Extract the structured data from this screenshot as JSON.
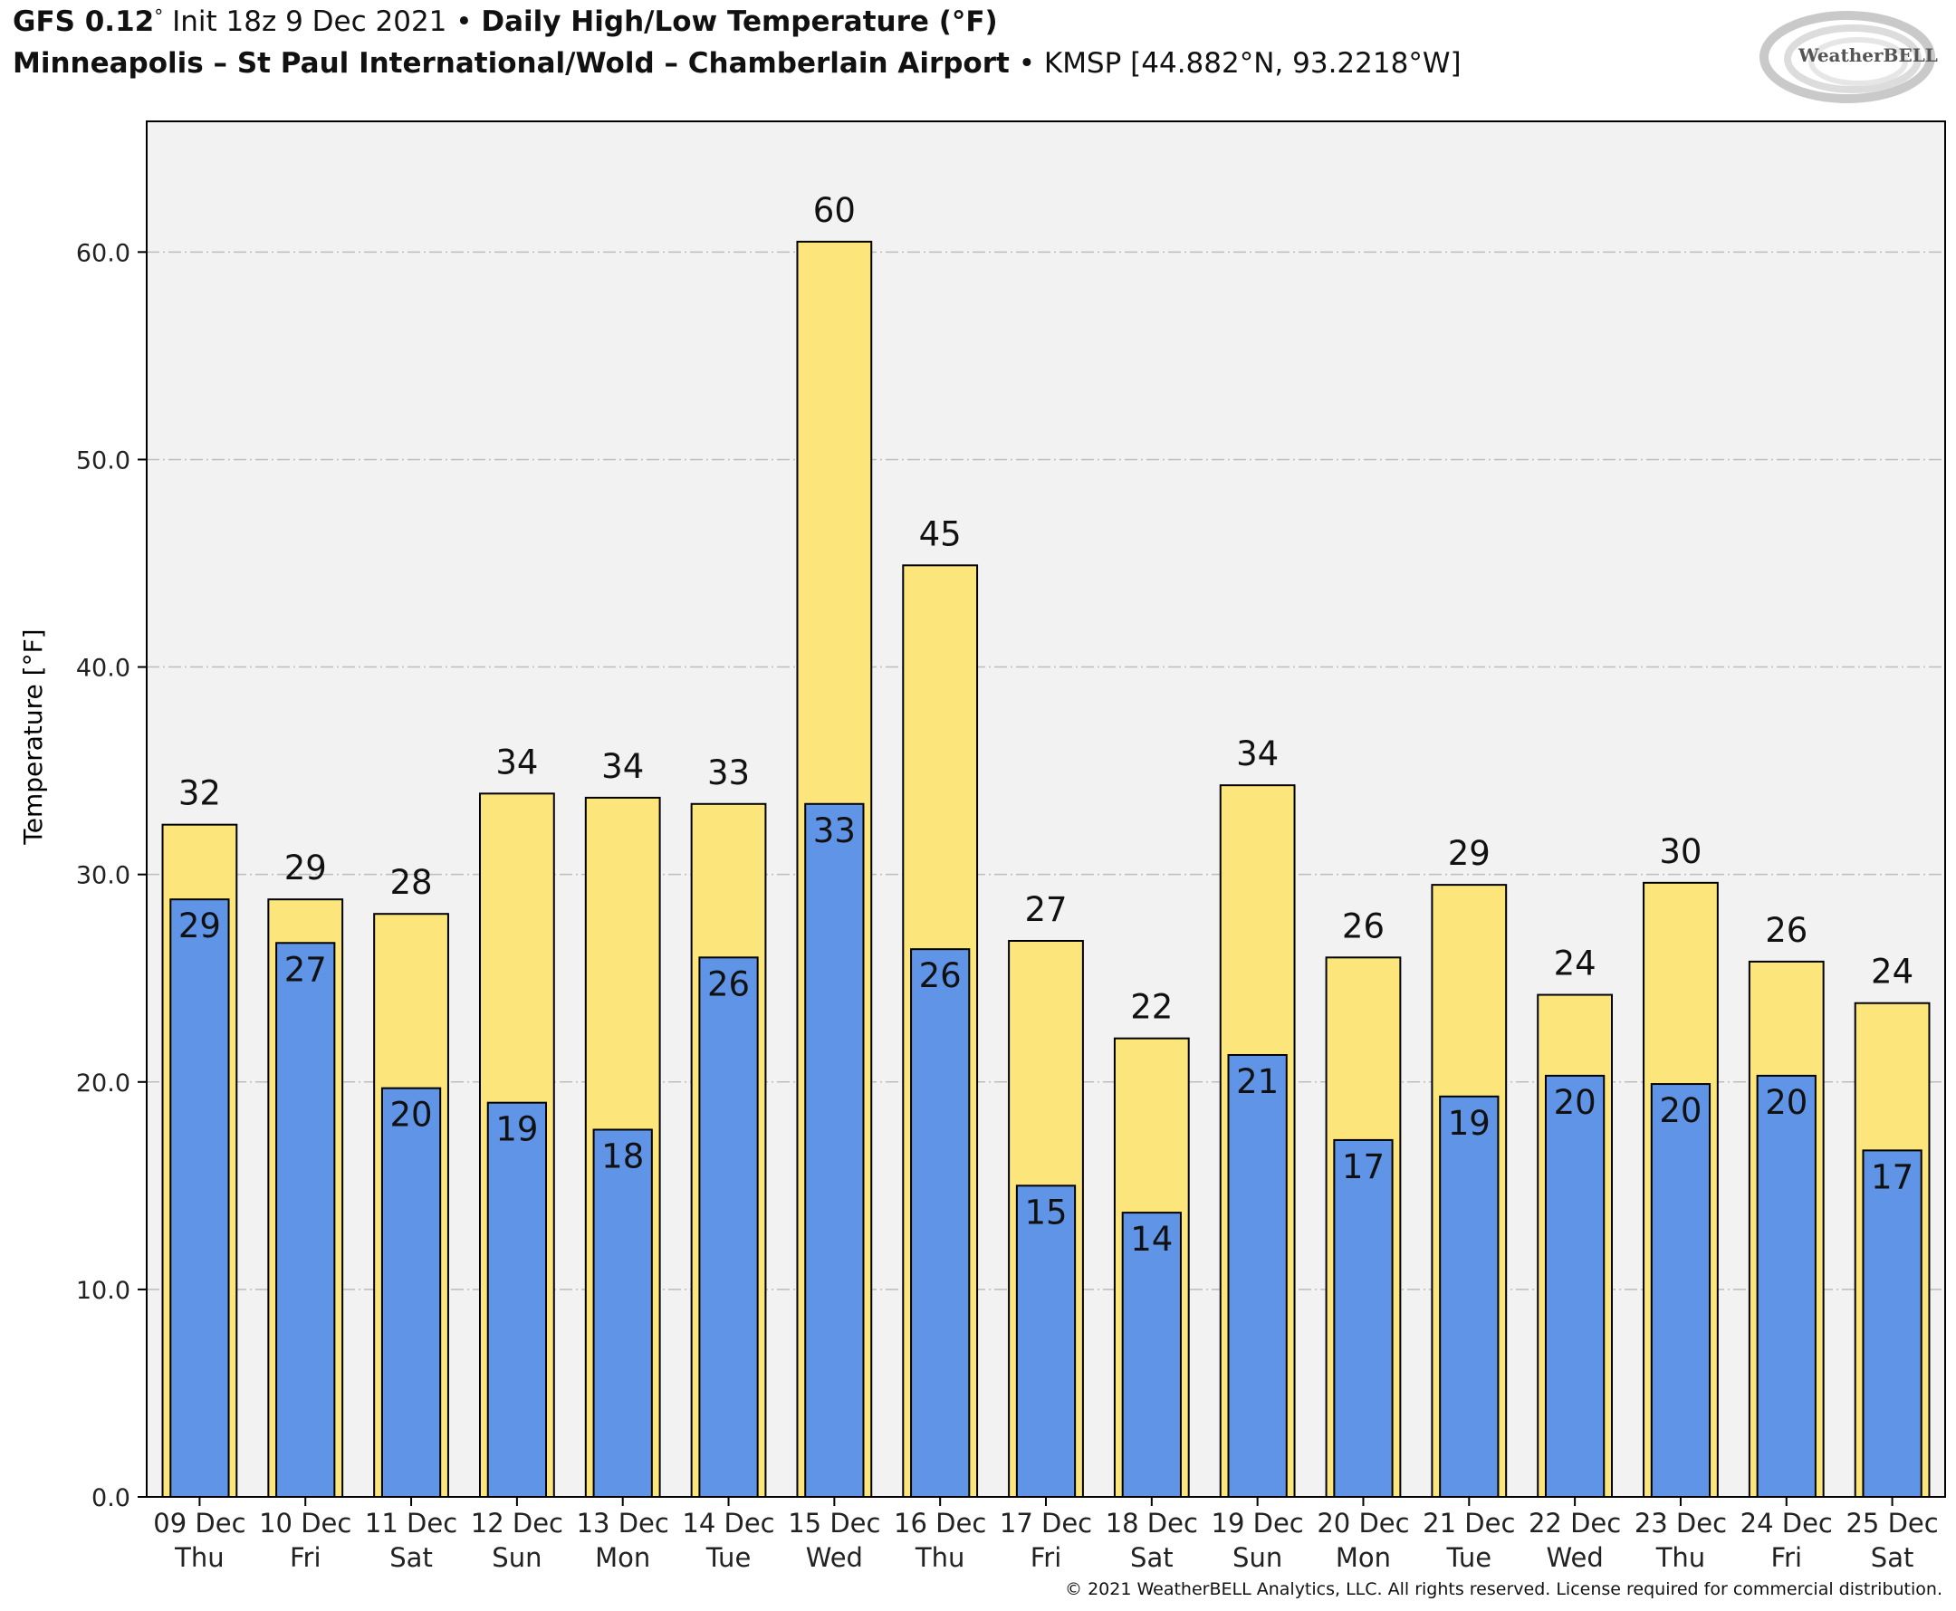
{
  "header": {
    "model": "GFS 0.12",
    "model_unit": "°",
    "init": "Init 18z 9 Dec 2021",
    "bullet": "•",
    "title": "Daily High/Low Temperature (°F)",
    "location": "Minneapolis – St Paul International/Wold – Chamberlain Airport",
    "station": "KMSP [44.882°N, 93.2218°W]"
  },
  "logo": {
    "text": "WeatherBELL"
  },
  "copyright": "© 2021 WeatherBELL Analytics, LLC. All rights reserved. License required for commercial distribution.",
  "colors": {
    "high": "#fce57a",
    "low": "#5f94e6",
    "plot_bg": "#f2f2f2",
    "grid": "#bdbdbd"
  },
  "chart_data": {
    "type": "bar",
    "ylabel": "Temperature [°F]",
    "ylim": [
      0,
      66.3
    ],
    "yticks": [
      0,
      10,
      20,
      30,
      40,
      50,
      60
    ],
    "ytick_labels": [
      "0.0",
      "10.0",
      "20.0",
      "30.0",
      "40.0",
      "50.0",
      "60.0"
    ],
    "grid": true,
    "categories": [
      "09 Dec",
      "10 Dec",
      "11 Dec",
      "12 Dec",
      "13 Dec",
      "14 Dec",
      "15 Dec",
      "16 Dec",
      "17 Dec",
      "18 Dec",
      "19 Dec",
      "20 Dec",
      "21 Dec",
      "22 Dec",
      "23 Dec",
      "24 Dec",
      "25 Dec"
    ],
    "weekdays": [
      "Thu",
      "Fri",
      "Sat",
      "Sun",
      "Mon",
      "Tue",
      "Wed",
      "Thu",
      "Fri",
      "Sat",
      "Sun",
      "Mon",
      "Tue",
      "Wed",
      "Thu",
      "Fri",
      "Sat"
    ],
    "series": [
      {
        "values": [
          32.4,
          28.8,
          28.1,
          33.9,
          33.7,
          33.4,
          60.5,
          44.9,
          26.8,
          22.1,
          34.3,
          26.0,
          29.5,
          24.2,
          29.6,
          25.8,
          23.8
        ],
        "labels": [
          "32",
          "29",
          "28",
          "34",
          "34",
          "33",
          "60",
          "45",
          "27",
          "22",
          "34",
          "26",
          "29",
          "24",
          "30",
          "26",
          "24"
        ]
      },
      {
        "values": [
          28.8,
          26.7,
          19.7,
          19.0,
          17.7,
          26.0,
          33.4,
          26.4,
          15.0,
          13.7,
          21.3,
          17.2,
          19.3,
          20.3,
          19.9,
          20.3,
          16.7
        ],
        "labels": [
          "29",
          "27",
          "20",
          "19",
          "18",
          "26",
          "33",
          "26",
          "15",
          "14",
          "21",
          "17",
          "19",
          "20",
          "20",
          "20",
          "17"
        ]
      }
    ]
  }
}
